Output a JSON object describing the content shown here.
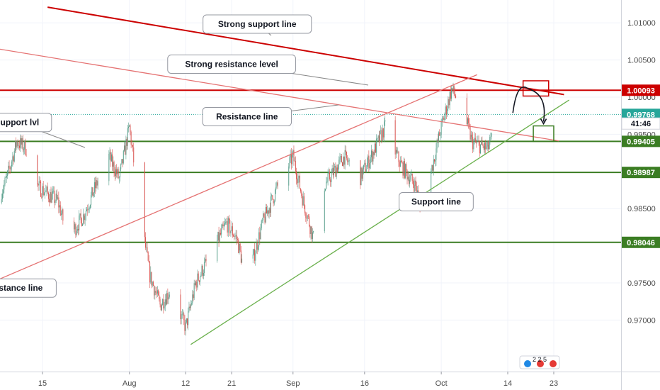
{
  "chart_data": {
    "type": "candlestick",
    "y_axis": {
      "ticks": [
        "1.01000",
        "1.00500",
        "1.00000",
        "0.99500",
        "0.98500",
        "0.97500",
        "0.97000"
      ],
      "tick_values": [
        1.01,
        1.005,
        1.0,
        0.995,
        0.985,
        0.975,
        0.97
      ],
      "range": [
        0.9665,
        1.0123
      ]
    },
    "x_axis": {
      "labels": [
        "15",
        "Aug",
        "12",
        "21",
        "Sep",
        "16",
        "Oct",
        "14",
        "23"
      ],
      "label_dates": [
        "Jul 15",
        "Aug 1",
        "Aug 12",
        "Aug 21",
        "Sep 2",
        "Sep 16",
        "Oct 1",
        "Oct 14",
        "Oct 23"
      ],
      "range": [
        "Jul 6",
        "Oct 30"
      ]
    },
    "price_tags": [
      {
        "label": "1.00093",
        "value": 1.00093,
        "color": "#cc0000"
      },
      {
        "label": "0.99768",
        "value": 0.99768,
        "color": "#26a69a"
      },
      {
        "label": "41:46",
        "value": 0.99645,
        "color": "#ffffff",
        "text_color": "#131722"
      },
      {
        "label": "0.99405",
        "value": 0.99405,
        "color": "#3b7d23"
      },
      {
        "label": "0.98987",
        "value": 0.98987,
        "color": "#3b7d23"
      },
      {
        "label": "0.98046",
        "value": 0.98046,
        "color": "#3b7d23"
      }
    ],
    "horizontal_levels": [
      {
        "value": 1.00093,
        "color": "#cc0000"
      },
      {
        "value": 0.99405,
        "color": "#3b7d23"
      },
      {
        "value": 0.98987,
        "color": "#3b7d23"
      },
      {
        "value": 0.98046,
        "color": "#3b7d23"
      },
      {
        "value": 0.99768,
        "color": "#26a69a",
        "dotted": true
      }
    ],
    "trend_lines": [
      {
        "name": "strong-support-line",
        "color": "#cc0000",
        "from": [
          "Jul 16",
          1.01211
        ],
        "to": [
          "Oct 25",
          1.00035
        ]
      },
      {
        "name": "resistance-line-upper",
        "color": "#e57373",
        "from": [
          "Jul 6",
          1.00653
        ],
        "to": [
          "Oct 24",
          0.99411
        ]
      },
      {
        "name": "resistance-line-lower",
        "color": "#e57373",
        "from": [
          "Jul 6",
          0.97534
        ],
        "to": [
          "Oct 8",
          1.00302
        ]
      },
      {
        "name": "support-line",
        "color": "#6ab04c",
        "from": [
          "Aug 13",
          0.96672
        ],
        "to": [
          "Oct 26",
          0.99961
        ]
      }
    ],
    "annotations": [
      {
        "text": "Strong support line",
        "date": "Aug 26",
        "price": 1.00983
      },
      {
        "text": "Strong resistance level",
        "date": "Aug 21",
        "price": 1.00444
      },
      {
        "text": "Resistance line",
        "date": "Aug 24",
        "price": 0.99737
      },
      {
        "text": "Support lvl",
        "date": "Jul 10",
        "price": 0.99659
      },
      {
        "text": "Support line",
        "date": "Sep 30",
        "price": 0.98592
      },
      {
        "text": "Resistance line",
        "date": "Jul 9",
        "price": 0.97431
      }
    ],
    "projection": {
      "target_box_high": {
        "from": "Oct 17",
        "to": "Oct 22",
        "low": 1.00015,
        "high": 1.0022,
        "color": "#cc0000"
      },
      "target_box_low": {
        "from": "Oct 19",
        "to": "Oct 23",
        "low": 0.99405,
        "high": 0.99613,
        "color": "#3b7d23"
      },
      "path": [
        [
          "Oct 15",
          0.99788
        ],
        [
          "Oct 18",
          1.00093
        ],
        [
          "Oct 21",
          0.99613
        ]
      ]
    },
    "candles": {
      "start": "Jul 6",
      "end": "Oct 13",
      "anchors": [
        [
          "Jul 6",
          0.9858
        ],
        [
          "Jul 8",
          0.989
        ],
        [
          "Jul 10",
          0.994
        ],
        [
          "Jul 12",
          0.993
        ],
        [
          "Jul 14",
          0.988
        ],
        [
          "Jul 18",
          0.986
        ],
        [
          "Jul 20",
          0.981
        ],
        [
          "Jul 23",
          0.984
        ],
        [
          "Jul 26",
          0.989
        ],
        [
          "Jul 28",
          0.992
        ],
        [
          "Jul 30",
          0.989
        ],
        [
          "Aug 1",
          0.996
        ],
        [
          "Aug 3",
          0.985
        ],
        [
          "Aug 5",
          0.976
        ],
        [
          "Aug 7",
          0.972
        ],
        [
          "Aug 9",
          0.974
        ],
        [
          "Aug 12",
          0.969
        ],
        [
          "Aug 14",
          0.975
        ],
        [
          "Aug 17",
          0.979
        ],
        [
          "Aug 20",
          0.983
        ],
        [
          "Aug 22",
          0.981
        ],
        [
          "Aug 24",
          0.975
        ],
        [
          "Aug 27",
          0.983
        ],
        [
          "Aug 30",
          0.988
        ],
        [
          "Sep 2",
          0.992
        ],
        [
          "Sep 4",
          0.986
        ],
        [
          "Sep 6",
          0.981
        ],
        [
          "Sep 8",
          0.988
        ],
        [
          "Sep 12",
          0.992
        ],
        [
          "Sep 15",
          0.989
        ],
        [
          "Sep 18",
          0.993
        ],
        [
          "Sep 20",
          0.996
        ],
        [
          "Sep 23",
          0.991
        ],
        [
          "Sep 26",
          0.988
        ],
        [
          "Sep 27",
          0.985
        ],
        [
          "Sep 29",
          0.99
        ],
        [
          "Oct 1",
          0.996
        ],
        [
          "Oct 3",
          1.001
        ],
        [
          "Oct 5",
          0.999
        ],
        [
          "Oct 7",
          0.994
        ],
        [
          "Oct 10",
          0.993
        ],
        [
          "Oct 13",
          0.9977
        ]
      ]
    }
  },
  "watermark": {
    "label": "2 2 5"
  }
}
